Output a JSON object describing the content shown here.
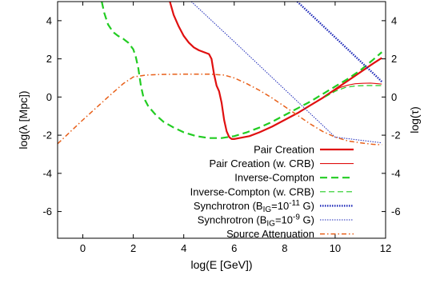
{
  "chart_data": {
    "type": "line",
    "xlabel": "log(E [GeV])",
    "ylabel": "log(λ [Mpc])",
    "y2label": "log(τ)",
    "xlim": [
      -1,
      12
    ],
    "ylim": [
      -7.4,
      5
    ],
    "xticks": [
      0,
      2,
      4,
      6,
      8,
      10,
      12
    ],
    "yticks": [
      -6,
      -4,
      -2,
      0,
      2,
      4
    ],
    "y2ticks": [
      -6,
      -4,
      -2,
      0,
      2,
      4
    ],
    "grid": false,
    "legend_position": "bottom-right",
    "series": [
      {
        "name": "Pair Creation",
        "color": "#e01010",
        "style": "solid-thick",
        "x": [
          3.45,
          3.6,
          3.8,
          4.0,
          4.2,
          4.4,
          4.6,
          4.8,
          5.0,
          5.1,
          5.2,
          5.3,
          5.4,
          5.5,
          5.6,
          5.7,
          5.8,
          5.9,
          6.0,
          6.2,
          6.6,
          7.0,
          7.5,
          8.0,
          8.5,
          9.0,
          9.5,
          10.0,
          10.5,
          11.0,
          11.5,
          11.85
        ],
        "y": [
          5.0,
          4.3,
          3.7,
          3.2,
          2.85,
          2.6,
          2.45,
          2.35,
          2.25,
          2.0,
          1.2,
          0.6,
          0.3,
          -0.3,
          -1.2,
          -1.8,
          -2.1,
          -2.2,
          -2.2,
          -2.15,
          -2.05,
          -1.85,
          -1.55,
          -1.2,
          -0.85,
          -0.45,
          -0.05,
          0.4,
          0.85,
          1.3,
          1.75,
          2.05
        ]
      },
      {
        "name": "Pair Creation (w. CRB)",
        "color": "#e01010",
        "style": "solid-thin",
        "x": [
          9.4,
          9.8,
          10.2,
          10.5,
          10.8,
          11.1,
          11.4,
          11.7,
          11.85
        ],
        "y": [
          -0.15,
          0.2,
          0.5,
          0.62,
          0.7,
          0.72,
          0.73,
          0.7,
          0.68
        ]
      },
      {
        "name": "Inverse-Compton",
        "color": "#22cc22",
        "style": "dashed-thick",
        "x": [
          0.75,
          0.85,
          1.0,
          1.2,
          1.4,
          1.6,
          1.8,
          2.0,
          2.1,
          2.2,
          2.3,
          2.4,
          2.6,
          2.9,
          3.2,
          3.6,
          4.0,
          4.5,
          5.0,
          5.5,
          6.0,
          6.5,
          7.0,
          7.5,
          8.0,
          8.5,
          9.0,
          9.5,
          10.0,
          10.5,
          11.0,
          11.5,
          11.85
        ],
        "y": [
          5.0,
          4.4,
          3.8,
          3.4,
          3.2,
          3.05,
          2.85,
          2.5,
          2.1,
          1.5,
          0.6,
          0.0,
          -0.5,
          -0.95,
          -1.3,
          -1.6,
          -1.85,
          -2.05,
          -2.15,
          -2.15,
          -2.05,
          -1.85,
          -1.6,
          -1.3,
          -0.95,
          -0.6,
          -0.25,
          0.15,
          0.55,
          0.95,
          1.4,
          1.95,
          2.35
        ]
      },
      {
        "name": "Inverse-Compton (w. CRB)",
        "color": "#22cc22",
        "style": "dashed-thin",
        "x": [
          9.6,
          10.0,
          10.4,
          10.8,
          11.2,
          11.6,
          11.85
        ],
        "y": [
          0.0,
          0.3,
          0.5,
          0.58,
          0.6,
          0.6,
          0.6
        ]
      },
      {
        "name": "Synchrotron (B_IG=10^-11 G)",
        "color": "#1c28b8",
        "style": "dotted-thick",
        "x": [
          8.5,
          9.3,
          10.1,
          10.9,
          11.7,
          11.85
        ],
        "y": [
          5.0,
          4.0,
          3.0,
          2.0,
          1.0,
          0.8
        ]
      },
      {
        "name": "Synchrotron (B_IG=10^-9 G)",
        "color": "#1c28b8",
        "style": "dotted-thin",
        "x": [
          4.3,
          6.0,
          8.0,
          10.0,
          11.85
        ],
        "y": [
          5.0,
          2.9,
          0.4,
          -2.1,
          -2.4
        ]
      },
      {
        "name": "Source Attenuation",
        "color": "#e8601a",
        "style": "dashdot",
        "x": [
          -1.0,
          0.0,
          1.0,
          1.6,
          2.0,
          2.5,
          3.0,
          4.0,
          5.0,
          5.6,
          6.0,
          6.5,
          7.0,
          7.5,
          8.0,
          8.5,
          9.0,
          9.5,
          10.0,
          10.5,
          11.0,
          11.5,
          11.85
        ],
        "y": [
          -2.45,
          -1.2,
          0.0,
          0.7,
          1.05,
          1.15,
          1.18,
          1.2,
          1.2,
          1.15,
          1.0,
          0.7,
          0.35,
          -0.05,
          -0.5,
          -0.95,
          -1.4,
          -1.8,
          -2.1,
          -2.3,
          -2.4,
          -2.48,
          -2.5
        ]
      }
    ],
    "legend": [
      {
        "label": "Pair Creation"
      },
      {
        "label": "Pair Creation (w. CRB)"
      },
      {
        "label": "Inverse-Compton"
      },
      {
        "label": "Inverse-Compton (w. CRB)"
      },
      {
        "label": "Synchrotron (B",
        "sub": "IG",
        "tail": "=10",
        "sup": "-11",
        "end": " G)"
      },
      {
        "label": "Synchrotron (B",
        "sub": "IG",
        "tail": "=10",
        "sup": "-9",
        "end": " G)"
      },
      {
        "label": "Source Attenuation"
      }
    ]
  }
}
